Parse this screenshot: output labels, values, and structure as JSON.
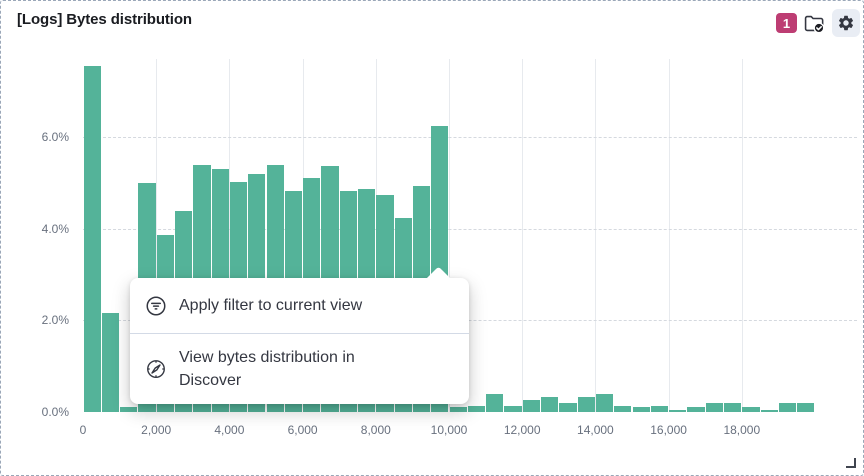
{
  "panel": {
    "title": "[Logs] Bytes distribution",
    "badge_count": "1",
    "icons": {
      "library": "folder-check-icon",
      "settings": "gear-icon"
    },
    "colors": {
      "badge_bg": "#bd3d73",
      "bar": "#54b399",
      "selection_border": "#9aa7b8",
      "icon": "#343741"
    }
  },
  "context_menu": {
    "items": [
      {
        "label": "Apply filter to current view",
        "icon": "filter-in-circle-icon"
      },
      {
        "label": "View bytes distribution in Discover",
        "icon": "compass-icon"
      }
    ]
  },
  "chart_data": {
    "type": "bar",
    "title": "[Logs] Bytes distribution",
    "xlabel": "",
    "ylabel": "",
    "grid": true,
    "legend": false,
    "xlim": [
      0,
      20000
    ],
    "ylim": [
      0,
      7.7
    ],
    "bin_width": 500,
    "x_ticks": [
      0,
      2000,
      4000,
      6000,
      8000,
      10000,
      12000,
      14000,
      16000,
      18000
    ],
    "x_tick_labels": [
      "0",
      "2,000",
      "4,000",
      "6,000",
      "8,000",
      "10,000",
      "12,000",
      "14,000",
      "16,000",
      "18,000"
    ],
    "y_ticks": [
      0,
      2,
      4,
      6
    ],
    "y_tick_labels": [
      "0.0%",
      "2.0%",
      "4.0%",
      "6.0%"
    ],
    "bin_starts": [
      0,
      500,
      1000,
      1500,
      2000,
      2500,
      3000,
      3500,
      4000,
      4500,
      5000,
      5500,
      6000,
      6500,
      7000,
      7500,
      8000,
      8500,
      9000,
      9500,
      10000,
      10500,
      11000,
      11500,
      12000,
      12500,
      13000,
      13500,
      14000,
      14500,
      15000,
      15500,
      16000,
      16500,
      17000,
      17500,
      18000,
      18500,
      19000,
      19500
    ],
    "values": [
      7.55,
      2.15,
      0.1,
      5.0,
      3.87,
      4.39,
      5.38,
      5.31,
      5.01,
      5.2,
      5.38,
      4.81,
      5.1,
      5.36,
      4.81,
      4.87,
      4.74,
      4.24,
      4.94,
      6.23,
      0.1,
      0.13,
      0.4,
      0.13,
      0.26,
      0.33,
      0.2,
      0.32,
      0.4,
      0.14,
      0.1,
      0.14,
      0.05,
      0.11,
      0.2,
      0.2,
      0.1,
      0.04,
      0.2,
      0.2
    ],
    "bar_color": "#54b399"
  }
}
